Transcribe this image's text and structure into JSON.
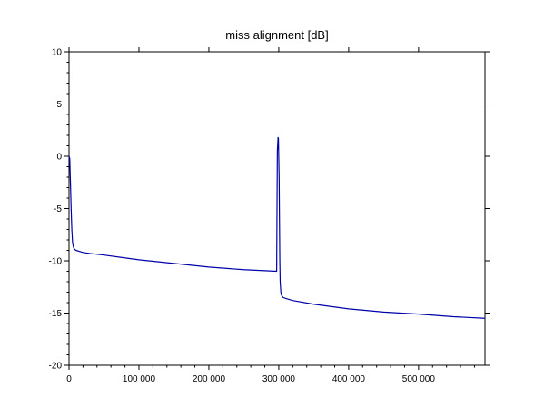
{
  "chart_data": {
    "type": "line",
    "title": "miss alignment [dB]",
    "xlabel": "",
    "ylabel": "",
    "xlim": [
      0,
      595000
    ],
    "ylim": [
      -20,
      10
    ],
    "x_ticks": [
      0,
      100000,
      200000,
      300000,
      400000,
      500000
    ],
    "x_tick_labels": [
      "0",
      "100 000",
      "200 000",
      "300 000",
      "400 000",
      "500 000"
    ],
    "y_ticks": [
      -20,
      -15,
      -10,
      -5,
      0,
      5,
      10
    ],
    "y_tick_labels": [
      "-20",
      "-15",
      "-10",
      "-5",
      "0",
      "5",
      "10"
    ],
    "grid": false,
    "line_color": "#0000aa",
    "series": [
      {
        "x": [
          0,
          1000,
          2000,
          3000,
          4000,
          5000,
          6000,
          7000,
          8000,
          10000,
          15000,
          20000,
          30000,
          50000,
          100000,
          150000,
          200000,
          250000,
          297000,
          297500,
          298000,
          299000,
          299500,
          300500,
          301000,
          301500,
          302000,
          303000,
          304000,
          306000,
          310000,
          320000,
          350000,
          400000,
          450000,
          500000,
          550000,
          595000
        ],
        "y": [
          0,
          -0.2,
          -2.5,
          -5,
          -7,
          -8.2,
          -8.6,
          -8.8,
          -8.9,
          -9.0,
          -9.1,
          -9.2,
          -9.3,
          -9.45,
          -9.9,
          -10.25,
          -10.6,
          -10.85,
          -11.0,
          -5,
          0.5,
          1.8,
          1.7,
          -2,
          -6,
          -10,
          -12,
          -13.0,
          -13.3,
          -13.5,
          -13.6,
          -13.8,
          -14.15,
          -14.6,
          -14.9,
          -15.1,
          -15.35,
          -15.5
        ]
      }
    ]
  }
}
